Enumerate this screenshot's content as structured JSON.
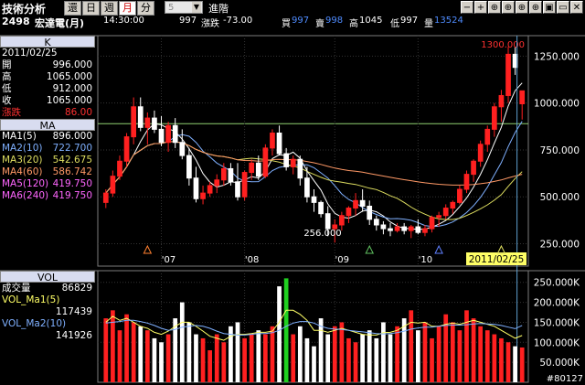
{
  "app": {
    "title": "技術分析",
    "period_tabs": [
      {
        "label": "還",
        "active": false
      },
      {
        "label": "日",
        "active": false
      },
      {
        "label": "週",
        "active": false
      },
      {
        "label": "月",
        "active": true
      },
      {
        "label": "分",
        "active": false
      }
    ],
    "minute_select": "5",
    "entrust": "進階",
    "tools": [
      "−",
      "+",
      "⊕",
      "⊕",
      "⊕",
      "⊕",
      "▣",
      "▭",
      "✕"
    ]
  },
  "quote": {
    "code": "2498",
    "name": "宏達電(月)",
    "time": "14:30:00",
    "last": "997",
    "change_label": "漲跌",
    "change": "-73.00",
    "buy_label": "買",
    "buy": "997",
    "sell_label": "賣",
    "sell": "998",
    "high_label": "高",
    "high": "1045",
    "low_label": "低",
    "low": "997",
    "vol_label": "量",
    "vol": "13524"
  },
  "k_panel": {
    "header": "K",
    "date": "2011/02/25",
    "rows": [
      {
        "k": "開",
        "v": "996.000",
        "color": "#ffffff"
      },
      {
        "k": "高",
        "v": "1065.000",
        "color": "#ffffff"
      },
      {
        "k": "低",
        "v": "912.000",
        "color": "#ffffff"
      },
      {
        "k": "收",
        "v": "1065.000",
        "color": "#ffffff"
      },
      {
        "k": "漲跌",
        "v": "86.00",
        "color": "#ff3030"
      }
    ]
  },
  "ma_panel": {
    "header": "MA",
    "rows": [
      {
        "k": "MA1(5)",
        "v": "896.000",
        "color": "#ffffff"
      },
      {
        "k": "MA2(10)",
        "v": "722.700",
        "color": "#7fb0ff"
      },
      {
        "k": "MA3(20)",
        "v": "542.675",
        "color": "#dede60"
      },
      {
        "k": "MA4(60)",
        "v": "586.742",
        "color": "#ff9966"
      },
      {
        "k": "MA5(120)",
        "v": "419.750",
        "color": "#ff66ff"
      },
      {
        "k": "MA6(240)",
        "v": "419.750",
        "color": "#ff66ff"
      }
    ]
  },
  "vol_panel": {
    "header": "VOL",
    "rows": [
      {
        "k": "成交量",
        "v": "86829",
        "color": "#ffffff"
      },
      {
        "k": "VOL_Ma1(5)",
        "v": "",
        "color": "#ffff66"
      },
      {
        "k": "",
        "v": "117439",
        "color": "#ffffff"
      },
      {
        "k": "VOL_Ma2(10)",
        "v": "",
        "color": "#7fb0ff"
      },
      {
        "k": "",
        "v": "141926",
        "color": "#ffffff"
      }
    ]
  },
  "chart_data": {
    "type": "candlestick",
    "price_axis_ticks": [
      "1250.000",
      "1000.000",
      "750.000",
      "500.000",
      "250.000"
    ],
    "price_axis_values": [
      1250,
      1000,
      750,
      500,
      250
    ],
    "price_range": [
      150,
      1330
    ],
    "reference_line": 890,
    "max_label": "1300.000",
    "min_label": "256.000",
    "x_labels": [
      "'07",
      "'08",
      "'09",
      "'10"
    ],
    "selected_date": "2011/02/25",
    "candles": [
      [
        470,
        540,
        440,
        520
      ],
      [
        520,
        640,
        500,
        610
      ],
      [
        610,
        720,
        590,
        690
      ],
      [
        690,
        840,
        660,
        820
      ],
      [
        820,
        1030,
        780,
        980
      ],
      [
        980,
        1030,
        850,
        870
      ],
      [
        870,
        950,
        780,
        920
      ],
      [
        920,
        960,
        840,
        860
      ],
      [
        860,
        930,
        770,
        790
      ],
      [
        790,
        900,
        740,
        880
      ],
      [
        880,
        920,
        760,
        790
      ],
      [
        790,
        860,
        700,
        720
      ],
      [
        720,
        760,
        560,
        600
      ],
      [
        600,
        660,
        470,
        490
      ],
      [
        490,
        560,
        460,
        520
      ],
      [
        520,
        580,
        500,
        560
      ],
      [
        560,
        620,
        520,
        590
      ],
      [
        590,
        680,
        560,
        650
      ],
      [
        650,
        680,
        560,
        580
      ],
      [
        580,
        680,
        480,
        500
      ],
      [
        500,
        640,
        480,
        630
      ],
      [
        630,
        700,
        590,
        680
      ],
      [
        680,
        720,
        590,
        610
      ],
      [
        610,
        780,
        600,
        760
      ],
      [
        760,
        860,
        720,
        840
      ],
      [
        840,
        880,
        720,
        730
      ],
      [
        730,
        760,
        640,
        660
      ],
      [
        660,
        720,
        620,
        700
      ],
      [
        700,
        720,
        560,
        600
      ],
      [
        600,
        660,
        470,
        500
      ],
      [
        500,
        540,
        420,
        470
      ],
      [
        470,
        480,
        390,
        410
      ],
      [
        410,
        450,
        290,
        330
      ],
      [
        330,
        380,
        256,
        350
      ],
      [
        350,
        420,
        320,
        400
      ],
      [
        400,
        450,
        360,
        440
      ],
      [
        440,
        520,
        400,
        480
      ],
      [
        480,
        540,
        420,
        450
      ],
      [
        450,
        480,
        350,
        380
      ],
      [
        380,
        400,
        320,
        350
      ],
      [
        350,
        370,
        300,
        330
      ],
      [
        330,
        360,
        290,
        320
      ],
      [
        320,
        360,
        310,
        340
      ],
      [
        340,
        360,
        300,
        320
      ],
      [
        320,
        350,
        280,
        340
      ],
      [
        340,
        380,
        300,
        310
      ],
      [
        310,
        350,
        290,
        330
      ],
      [
        330,
        400,
        310,
        390
      ],
      [
        390,
        420,
        340,
        400
      ],
      [
        400,
        460,
        380,
        440
      ],
      [
        440,
        480,
        410,
        470
      ],
      [
        470,
        560,
        460,
        540
      ],
      [
        540,
        640,
        520,
        620
      ],
      [
        620,
        700,
        580,
        690
      ],
      [
        690,
        800,
        660,
        780
      ],
      [
        780,
        880,
        740,
        860
      ],
      [
        860,
        1000,
        820,
        980
      ],
      [
        980,
        1070,
        900,
        1040
      ],
      [
        1040,
        1300,
        1000,
        1260
      ],
      [
        1260,
        1300,
        1150,
        1190
      ],
      [
        996,
        1065,
        912,
        1065
      ]
    ],
    "vol_axis_ticks": [
      "250.000K",
      "200.000K",
      "150.000K",
      "100.000K",
      "50.000K"
    ],
    "vol_axis_values": [
      250,
      200,
      150,
      100,
      50
    ],
    "vol_range": [
      0,
      270
    ],
    "volumes": [
      160,
      180,
      130,
      170,
      150,
      140,
      130,
      110,
      100,
      120,
      160,
      200,
      150,
      120,
      110,
      80,
      120,
      100,
      140,
      150,
      110,
      120,
      130,
      120,
      140,
      240,
      260,
      120,
      140,
      110,
      90,
      160,
      120,
      140,
      150,
      110,
      100,
      120,
      130,
      110,
      150,
      120,
      140,
      160,
      180,
      130,
      150,
      110,
      140,
      170,
      150,
      130,
      180,
      160,
      140,
      130,
      120,
      110,
      100,
      90,
      87
    ],
    "vol_ma1": [
      150,
      165,
      155,
      160,
      150,
      140,
      135,
      125,
      120,
      128,
      140,
      150,
      150,
      140,
      128,
      115,
      110,
      105,
      115,
      120,
      120,
      122,
      125,
      125,
      128,
      150,
      180,
      180,
      170,
      155,
      130,
      130,
      125,
      130,
      135,
      130,
      125,
      120,
      118,
      118,
      124,
      125,
      130,
      140,
      150,
      148,
      150,
      140,
      140,
      145,
      148,
      145,
      150,
      155,
      150,
      145,
      140,
      130,
      120,
      110,
      117
    ],
    "vol_ma2": [
      148,
      150,
      152,
      155,
      155,
      152,
      148,
      142,
      135,
      130,
      132,
      138,
      140,
      142,
      140,
      135,
      128,
      122,
      120,
      118,
      118,
      120,
      122,
      122,
      124,
      130,
      140,
      148,
      152,
      152,
      148,
      140,
      135,
      133,
      132,
      130,
      128,
      126,
      124,
      122,
      121,
      122,
      124,
      128,
      133,
      136,
      138,
      138,
      140,
      142,
      143,
      143,
      144,
      146,
      147,
      146,
      145,
      142,
      138,
      134,
      142
    ]
  }
}
